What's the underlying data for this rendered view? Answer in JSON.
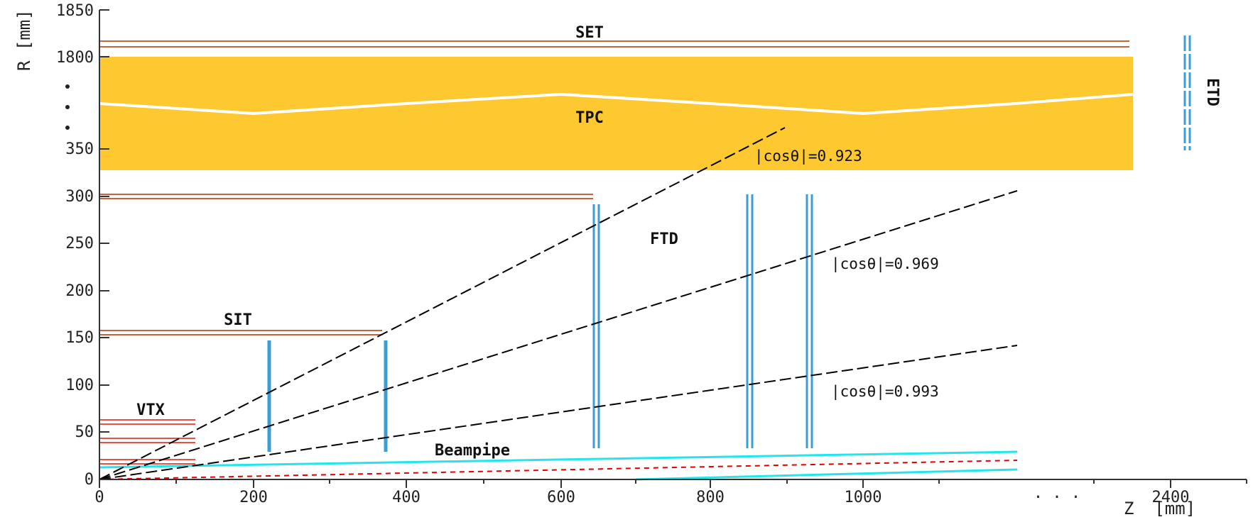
{
  "axes": {
    "x_title": "Z  [mm]",
    "y_title": "R [mm]",
    "x_ticks": [
      "0",
      "200",
      "400",
      "600",
      "800",
      "1000",
      "2400"
    ],
    "y_ticks": [
      "0",
      "50",
      "100",
      "150",
      "200",
      "250",
      "300",
      "350",
      "1800",
      "1850"
    ],
    "x_break": "· · ·",
    "y_break": "·\n·\n·"
  },
  "detectors": {
    "set": "SET",
    "tpc": "TPC",
    "sit": "SIT",
    "vtx": "VTX",
    "ftd": "FTD",
    "etd": "ETD",
    "beampipe": "Beampipe"
  },
  "angle_lines": [
    {
      "label": "|cosθ|=0.923",
      "cos_theta": 0.923
    },
    {
      "label": "|cosθ|=0.969",
      "cos_theta": 0.969
    },
    {
      "label": "|cosθ|=0.993",
      "cos_theta": 0.993
    }
  ],
  "colors": {
    "tpc_fill": "#fdc830",
    "layer_orange": "#c8643c",
    "layer_red": "#e8504a",
    "disk_blue": "#3a9fd0",
    "beampipe_cyan": "#22e6ea",
    "beam_red": "#e00000",
    "axis": "#333333"
  }
}
